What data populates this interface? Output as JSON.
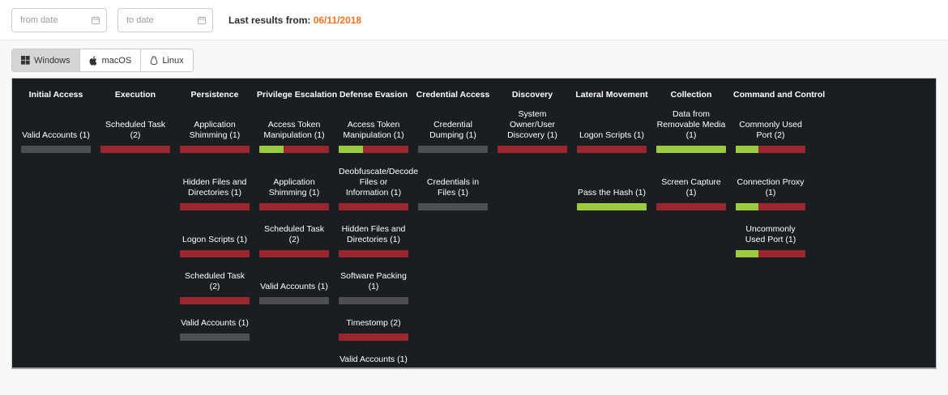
{
  "filters": {
    "from_placeholder": "from date",
    "to_placeholder": "to date",
    "last_results_label": "Last results from:",
    "last_results_date": "06/11/2018"
  },
  "tabs": [
    {
      "label": "Windows",
      "icon": "windows-icon",
      "active": true
    },
    {
      "label": "macOS",
      "icon": "apple-icon",
      "active": false
    },
    {
      "label": "Linux",
      "icon": "linux-icon",
      "active": false
    }
  ],
  "colors": {
    "red": "#9a2630",
    "green": "#9ccb3f",
    "gray": "#4c4e52",
    "accent_orange": "#f4731f",
    "panel_bg": "#1a1d22"
  },
  "matrix": {
    "columns": [
      {
        "title": "Initial Access",
        "techniques": [
          {
            "label": "Valid Accounts (1)",
            "segments": [
              [
                "gray",
                100
              ]
            ]
          }
        ]
      },
      {
        "title": "Execution",
        "techniques": [
          {
            "label": "Scheduled Task (2)",
            "segments": [
              [
                "red",
                100
              ]
            ]
          }
        ]
      },
      {
        "title": "Persistence",
        "techniques": [
          {
            "label": "Application Shimming (1)",
            "segments": [
              [
                "red",
                100
              ]
            ]
          },
          {
            "label": "Hidden Files and Directories (1)",
            "segments": [
              [
                "red",
                100
              ]
            ]
          },
          {
            "label": "Logon Scripts (1)",
            "segments": [
              [
                "red",
                100
              ]
            ]
          },
          {
            "label": "Scheduled Task (2)",
            "segments": [
              [
                "red",
                100
              ]
            ]
          },
          {
            "label": "Valid Accounts (1)",
            "segments": [
              [
                "gray",
                100
              ]
            ]
          }
        ]
      },
      {
        "title": "Privilege Escalation",
        "techniques": [
          {
            "label": "Access Token Manipulation (1)",
            "segments": [
              [
                "green",
                35
              ],
              [
                "red",
                65
              ]
            ]
          },
          {
            "label": "Application Shimming (1)",
            "segments": [
              [
                "red",
                100
              ]
            ]
          },
          {
            "label": "Scheduled Task (2)",
            "segments": [
              [
                "red",
                100
              ]
            ]
          },
          {
            "label": "Valid Accounts (1)",
            "segments": [
              [
                "gray",
                100
              ]
            ]
          }
        ]
      },
      {
        "title": "Defense Evasion",
        "techniques": [
          {
            "label": "Access Token Manipulation (1)",
            "segments": [
              [
                "green",
                35
              ],
              [
                "red",
                65
              ]
            ]
          },
          {
            "label": "Deobfuscate/Decode Files or Information (1)",
            "segments": [
              [
                "red",
                100
              ]
            ]
          },
          {
            "label": "Hidden Files and Directories (1)",
            "segments": [
              [
                "red",
                100
              ]
            ]
          },
          {
            "label": "Software Packing (1)",
            "segments": [
              [
                "gray",
                100
              ]
            ]
          },
          {
            "label": "Timestomp (2)",
            "segments": [
              [
                "red",
                100
              ]
            ]
          },
          {
            "label": "Valid Accounts (1)",
            "segments": [
              [
                "gray",
                100
              ]
            ]
          }
        ]
      },
      {
        "title": "Credential Access",
        "techniques": [
          {
            "label": "Credential Dumping (1)",
            "segments": [
              [
                "gray",
                100
              ]
            ]
          },
          {
            "label": "Credentials in Files (1)",
            "segments": [
              [
                "gray",
                100
              ]
            ]
          }
        ]
      },
      {
        "title": "Discovery",
        "techniques": [
          {
            "label": "System Owner/User Discovery (1)",
            "segments": [
              [
                "red",
                100
              ]
            ]
          }
        ]
      },
      {
        "title": "Lateral Movement",
        "techniques": [
          {
            "label": "Logon Scripts (1)",
            "segments": [
              [
                "red",
                100
              ]
            ]
          },
          {
            "label": "Pass the Hash (1)",
            "segments": [
              [
                "green",
                100
              ]
            ]
          }
        ]
      },
      {
        "title": "Collection",
        "techniques": [
          {
            "label": "Data from Removable Media (1)",
            "segments": [
              [
                "green",
                100
              ]
            ]
          },
          {
            "label": "Screen Capture (1)",
            "segments": [
              [
                "red",
                100
              ]
            ]
          }
        ]
      },
      {
        "title": "Command and Control",
        "techniques": [
          {
            "label": "Commonly Used Port (2)",
            "segments": [
              [
                "green",
                33
              ],
              [
                "red",
                67
              ]
            ]
          },
          {
            "label": "Connection Proxy (1)",
            "segments": [
              [
                "green",
                33
              ],
              [
                "red",
                67
              ]
            ]
          },
          {
            "label": "Uncommonly Used Port (1)",
            "segments": [
              [
                "green",
                33
              ],
              [
                "red",
                67
              ]
            ]
          }
        ]
      }
    ]
  }
}
